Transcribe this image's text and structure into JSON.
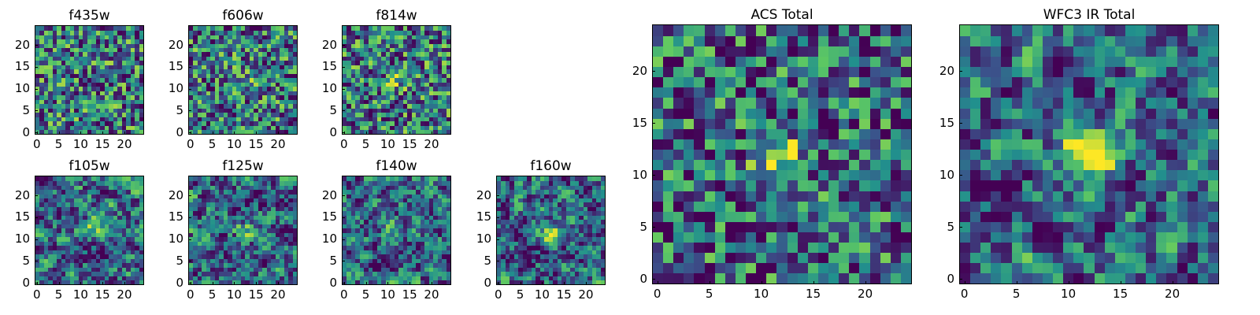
{
  "figure": {
    "description_colormap": "viridis"
  },
  "colormap": {
    "name": "viridis",
    "stops": [
      "#440154",
      "#3b528b",
      "#21908d",
      "#5dc863",
      "#fde725"
    ]
  },
  "chart_data": [
    {
      "id": "f435w",
      "type": "heatmap",
      "title": "f435w",
      "grid": [
        25,
        25
      ],
      "xticks": [
        "0",
        "5",
        "10",
        "15",
        "20"
      ],
      "yticks": [
        "0",
        "5",
        "10",
        "15",
        "20"
      ],
      "xlim": [
        -0.5,
        24.5
      ],
      "ylim": [
        -0.5,
        24.5
      ],
      "signal": 0.0,
      "noise": "high"
    },
    {
      "id": "f606w",
      "type": "heatmap",
      "title": "f606w",
      "grid": [
        25,
        25
      ],
      "xticks": [
        "0",
        "5",
        "10",
        "15",
        "20"
      ],
      "yticks": [
        "0",
        "5",
        "10",
        "15",
        "20"
      ],
      "xlim": [
        -0.5,
        24.5
      ],
      "ylim": [
        -0.5,
        24.5
      ],
      "signal": 0.15,
      "noise": "high"
    },
    {
      "id": "f814w",
      "type": "heatmap",
      "title": "f814w",
      "grid": [
        25,
        25
      ],
      "xticks": [
        "0",
        "5",
        "10",
        "15",
        "20"
      ],
      "yticks": [
        "0",
        "5",
        "10",
        "15",
        "20"
      ],
      "xlim": [
        -0.5,
        24.5
      ],
      "ylim": [
        -0.5,
        24.5
      ],
      "signal": 0.25,
      "noise": "high"
    },
    {
      "id": "f105w",
      "type": "heatmap",
      "title": "f105w",
      "grid": [
        25,
        25
      ],
      "xticks": [
        "0",
        "5",
        "10",
        "15",
        "20"
      ],
      "yticks": [
        "0",
        "5",
        "10",
        "15",
        "20"
      ],
      "xlim": [
        -0.5,
        24.5
      ],
      "ylim": [
        -0.5,
        24.5
      ],
      "signal": 0.35,
      "noise": "smooth"
    },
    {
      "id": "f125w",
      "type": "heatmap",
      "title": "f125w",
      "grid": [
        25,
        25
      ],
      "xticks": [
        "0",
        "5",
        "10",
        "15",
        "20"
      ],
      "yticks": [
        "0",
        "5",
        "10",
        "15",
        "20"
      ],
      "xlim": [
        -0.5,
        24.5
      ],
      "ylim": [
        -0.5,
        24.5
      ],
      "signal": 0.35,
      "noise": "smooth"
    },
    {
      "id": "f140w",
      "type": "heatmap",
      "title": "f140w",
      "grid": [
        25,
        25
      ],
      "xticks": [
        "0",
        "5",
        "10",
        "15",
        "20"
      ],
      "yticks": [
        "0",
        "5",
        "10",
        "15",
        "20"
      ],
      "xlim": [
        -0.5,
        24.5
      ],
      "ylim": [
        -0.5,
        24.5
      ],
      "signal": 0.4,
      "noise": "smooth"
    },
    {
      "id": "f160w",
      "type": "heatmap",
      "title": "f160w",
      "grid": [
        25,
        25
      ],
      "xticks": [
        "0",
        "5",
        "10",
        "15",
        "20"
      ],
      "yticks": [
        "0",
        "5",
        "10",
        "15",
        "20"
      ],
      "xlim": [
        -0.5,
        24.5
      ],
      "ylim": [
        -0.5,
        24.5
      ],
      "signal": 0.4,
      "noise": "smooth"
    },
    {
      "id": "acs-total",
      "type": "heatmap",
      "title": "ACS Total",
      "grid": [
        25,
        25
      ],
      "xticks": [
        "0",
        "5",
        "10",
        "15",
        "20"
      ],
      "yticks": [
        "0",
        "5",
        "10",
        "15",
        "20"
      ],
      "xlim": [
        -0.5,
        24.5
      ],
      "ylim": [
        -0.5,
        24.5
      ],
      "signal": 0.45,
      "noise": "medium"
    },
    {
      "id": "wfc3-ir-total",
      "type": "heatmap",
      "title": "WFC3 IR Total",
      "grid": [
        25,
        25
      ],
      "xticks": [
        "0",
        "5",
        "10",
        "15",
        "20"
      ],
      "yticks": [
        "0",
        "5",
        "10",
        "15",
        "20"
      ],
      "xlim": [
        -0.5,
        24.5
      ],
      "ylim": [
        -0.5,
        24.5
      ],
      "signal": 0.7,
      "noise": "smooth"
    }
  ]
}
